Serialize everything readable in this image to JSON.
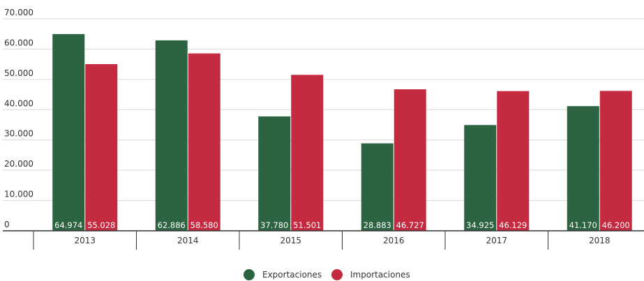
{
  "chart_data": {
    "type": "bar",
    "categories": [
      "2013",
      "2014",
      "2015",
      "2016",
      "2017",
      "2018"
    ],
    "series": [
      {
        "name": "Exportaciones",
        "color": "#2c6441",
        "values": [
          64974,
          62886,
          37780,
          28883,
          34925,
          41170
        ],
        "labels": [
          "64.974",
          "62.886",
          "37.780",
          "28.883",
          "34.925",
          "41.170"
        ]
      },
      {
        "name": "Importaciones",
        "color": "#c42b40",
        "values": [
          55028,
          58580,
          51501,
          46727,
          46129,
          46200
        ],
        "labels": [
          "55.028",
          "58.580",
          "51.501",
          "46.727",
          "46.129",
          "46.200"
        ]
      }
    ],
    "ylim": [
      0,
      70000
    ],
    "yticks": [
      0,
      10000,
      20000,
      30000,
      40000,
      50000,
      60000,
      70000
    ],
    "ytick_labels": [
      "0",
      "10.000",
      "20.000",
      "30.000",
      "40.000",
      "50.000",
      "60.000",
      "70.000"
    ],
    "grid": true,
    "legend_position": "bottom-center",
    "title": "",
    "xlabel": "",
    "ylabel": ""
  }
}
